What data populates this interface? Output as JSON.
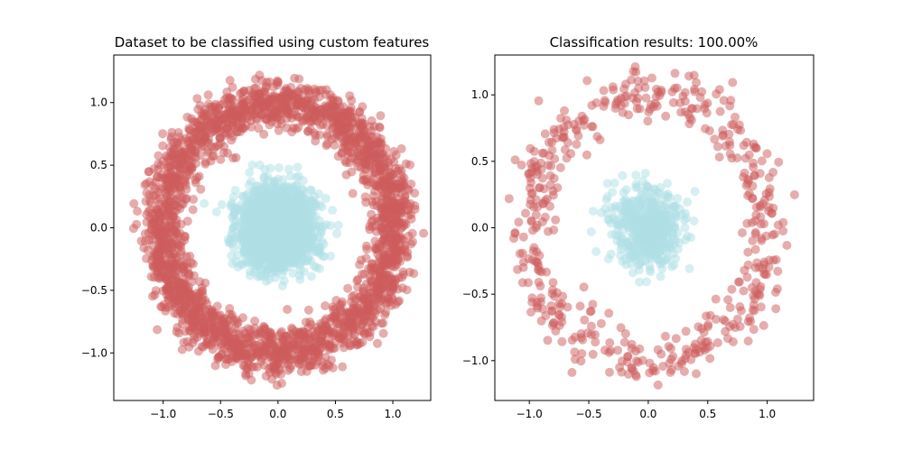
{
  "chart_data": [
    {
      "type": "scatter",
      "title": "Dataset to be classified using custom features",
      "xlabel": "",
      "ylabel": "",
      "xlim": [
        -1.43,
        1.33
      ],
      "ylim": [
        -1.38,
        1.38
      ],
      "xticks": [
        -1.0,
        -0.5,
        0.0,
        0.5,
        1.0
      ],
      "xtick_labels": [
        "−1.0",
        "−0.5",
        "0.0",
        "0.5",
        "1.0"
      ],
      "yticks": [
        -1.0,
        -0.5,
        0.0,
        0.5,
        1.0
      ],
      "ytick_labels": [
        "−1.0",
        "−0.5",
        "0.0",
        "0.5",
        "1.0"
      ],
      "grid": false,
      "legend": "none",
      "series": [
        {
          "color": "#cd5c5c",
          "distribution": "ring",
          "center": [
            0.0,
            0.0
          ],
          "radius_mean": 1.0,
          "radius_std": 0.1,
          "point_count": 2500,
          "opacity": 0.5
        },
        {
          "color": "#b0e0e6",
          "distribution": "disc",
          "center": [
            0.0,
            0.0
          ],
          "std": 0.15,
          "point_count": 2500,
          "opacity": 0.5
        }
      ]
    },
    {
      "type": "scatter",
      "title": "Classification results: 100.00%",
      "xlabel": "",
      "ylabel": "",
      "xlim": [
        -1.29,
        1.39
      ],
      "ylim": [
        -1.3,
        1.3
      ],
      "xticks": [
        -1.0,
        -0.5,
        0.0,
        0.5,
        1.0
      ],
      "xtick_labels": [
        "−1.0",
        "−0.5",
        "0.0",
        "0.5",
        "1.0"
      ],
      "yticks": [
        -1.0,
        -0.5,
        0.0,
        0.5,
        1.0
      ],
      "ytick_labels": [
        "−1.0",
        "−0.5",
        "0.0",
        "0.5",
        "1.0"
      ],
      "grid": false,
      "legend": "none",
      "series": [
        {
          "color": "#cd5c5c",
          "distribution": "ring",
          "center": [
            0.0,
            0.0
          ],
          "radius_mean": 1.0,
          "radius_std": 0.1,
          "point_count": 500,
          "opacity": 0.5
        },
        {
          "color": "#b0e0e6",
          "distribution": "disc",
          "center": [
            0.0,
            0.0
          ],
          "std": 0.15,
          "point_count": 500,
          "opacity": 0.5
        }
      ]
    }
  ]
}
